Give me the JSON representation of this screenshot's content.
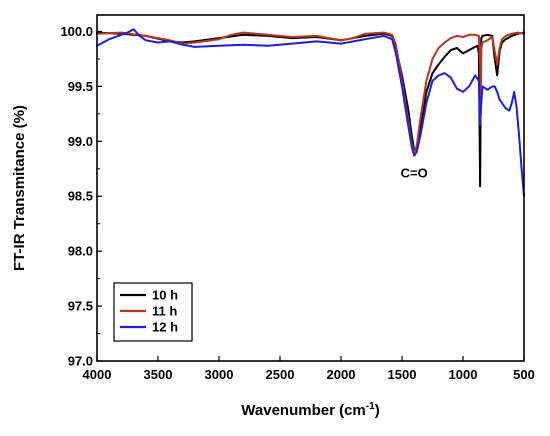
{
  "chart_data": {
    "type": "line",
    "title": "",
    "xlabel": "Wavenumber (cm",
    "xlabel_sup": "-1",
    "xlabel_end": ")",
    "ylabel": "FT-IR Transmitance (%)",
    "xlim": [
      4000,
      500
    ],
    "ylim": [
      97.0,
      100.15
    ],
    "x_reversed": true,
    "x_ticks": [
      4000,
      3500,
      3000,
      2500,
      2000,
      1500,
      1000,
      500
    ],
    "x_tick_labels": [
      "4000",
      "3500",
      "3000",
      "2500",
      "2000",
      "1500",
      "1000",
      "500"
    ],
    "y_ticks": [
      97.0,
      97.5,
      98.0,
      98.5,
      99.0,
      99.5,
      100.0
    ],
    "y_tick_labels": [
      "97.0",
      "97.5",
      "98.0",
      "98.5",
      "99.0",
      "99.5",
      "100.0"
    ],
    "grid": false,
    "legend_position": "bottom-left",
    "annotations": [
      {
        "text": "C=O",
        "x": 1400,
        "y": 98.67
      }
    ],
    "series": [
      {
        "name": "10 h",
        "color": "#000000",
        "x": [
          4000,
          3800,
          3600,
          3400,
          3300,
          3200,
          3000,
          2800,
          2600,
          2400,
          2200,
          2000,
          1800,
          1650,
          1580,
          1550,
          1500,
          1450,
          1420,
          1400,
          1380,
          1350,
          1300,
          1250,
          1200,
          1150,
          1100,
          1050,
          1000,
          950,
          900,
          880,
          870,
          865,
          860,
          855,
          850,
          840,
          800,
          760,
          740,
          720,
          700,
          680,
          650,
          600,
          550,
          500
        ],
        "y": [
          99.99,
          99.98,
          99.96,
          99.91,
          99.9,
          99.91,
          99.94,
          99.97,
          99.96,
          99.94,
          99.95,
          99.92,
          99.96,
          99.98,
          99.96,
          99.85,
          99.6,
          99.3,
          99.05,
          98.92,
          98.93,
          99.1,
          99.45,
          99.62,
          99.7,
          99.77,
          99.83,
          99.85,
          99.8,
          99.83,
          99.86,
          99.87,
          99.8,
          99.2,
          98.59,
          99.4,
          99.94,
          99.96,
          99.97,
          99.96,
          99.75,
          99.6,
          99.82,
          99.9,
          99.93,
          99.96,
          99.98,
          99.99
        ]
      },
      {
        "name": "11 h",
        "color": "#b5371c",
        "x": [
          4000,
          3800,
          3600,
          3400,
          3300,
          3200,
          3000,
          2900,
          2800,
          2600,
          2400,
          2200,
          2000,
          1900,
          1800,
          1650,
          1580,
          1550,
          1500,
          1450,
          1420,
          1400,
          1380,
          1350,
          1300,
          1250,
          1200,
          1150,
          1100,
          1050,
          1000,
          950,
          900,
          870,
          860,
          855,
          850,
          840,
          800,
          760,
          740,
          720,
          700,
          680,
          650,
          600,
          550,
          500
        ],
        "y": [
          99.98,
          99.99,
          99.96,
          99.92,
          99.89,
          99.9,
          99.93,
          99.97,
          99.99,
          99.97,
          99.95,
          99.96,
          99.92,
          99.94,
          99.98,
          99.99,
          99.97,
          99.88,
          99.55,
          99.2,
          98.98,
          98.9,
          98.95,
          99.2,
          99.55,
          99.75,
          99.85,
          99.9,
          99.94,
          99.96,
          99.95,
          99.97,
          99.97,
          99.96,
          99.7,
          99.3,
          99.85,
          99.9,
          99.92,
          99.95,
          99.82,
          99.7,
          99.85,
          99.93,
          99.96,
          99.98,
          99.99,
          99.98
        ]
      },
      {
        "name": "12 h",
        "color": "#1e1edc",
        "x": [
          4000,
          3900,
          3800,
          3750,
          3700,
          3650,
          3600,
          3500,
          3400,
          3300,
          3200,
          3000,
          2800,
          2600,
          2400,
          2200,
          2000,
          1800,
          1650,
          1580,
          1550,
          1500,
          1450,
          1420,
          1400,
          1380,
          1350,
          1300,
          1250,
          1200,
          1150,
          1100,
          1050,
          1000,
          950,
          900,
          870,
          860,
          850,
          840,
          800,
          760,
          740,
          720,
          700,
          680,
          650,
          620,
          600,
          580,
          560,
          540,
          520,
          500
        ],
        "y": [
          99.87,
          99.93,
          99.97,
          99.99,
          100.02,
          99.96,
          99.92,
          99.9,
          99.91,
          99.88,
          99.86,
          99.87,
          99.88,
          99.87,
          99.89,
          99.91,
          99.89,
          99.93,
          99.96,
          99.93,
          99.8,
          99.5,
          99.15,
          98.95,
          98.87,
          98.9,
          99.05,
          99.35,
          99.55,
          99.6,
          99.62,
          99.58,
          99.48,
          99.45,
          99.5,
          99.6,
          99.55,
          99.15,
          99.35,
          99.5,
          99.47,
          99.5,
          99.5,
          99.45,
          99.38,
          99.35,
          99.3,
          99.28,
          99.35,
          99.45,
          99.3,
          99.05,
          98.75,
          98.5
        ]
      }
    ]
  }
}
